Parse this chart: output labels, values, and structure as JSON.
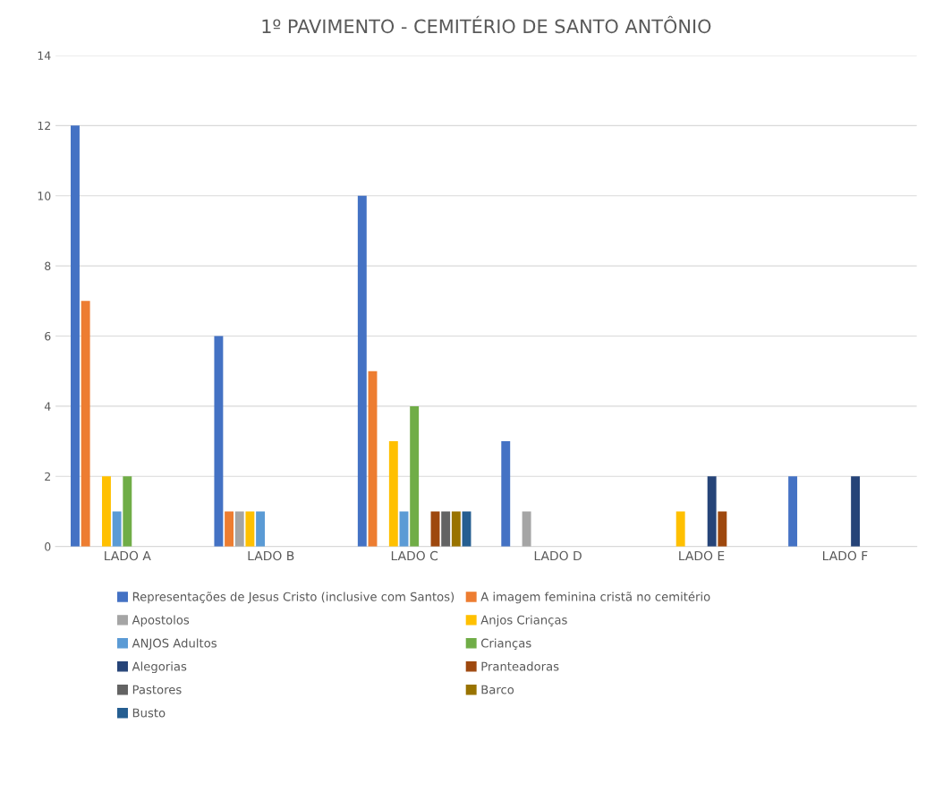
{
  "chart_data": {
    "type": "bar",
    "title": "1º PAVIMENTO - CEMITÉRIO DE SANTO ANTÔNIO",
    "categories": [
      "LADO A",
      "LADO B",
      "LADO C",
      "LADO D",
      "LADO E",
      "LADO F"
    ],
    "series": [
      {
        "name": "Representações de Jesus Cristo (inclusive com Santos)",
        "color": "#4472c4",
        "values": [
          12,
          6,
          10,
          3,
          null,
          2
        ]
      },
      {
        "name": "A imagem feminina cristã no cemitério",
        "color": "#ed7d31",
        "values": [
          7,
          1,
          5,
          null,
          null,
          null
        ]
      },
      {
        "name": "Apostolos",
        "color": "#a5a5a5",
        "values": [
          null,
          1,
          null,
          1,
          null,
          null
        ]
      },
      {
        "name": "Anjos Crianças",
        "color": "#ffc000",
        "values": [
          2,
          1,
          3,
          null,
          1,
          null
        ]
      },
      {
        "name": "ANJOS Adultos",
        "color": "#5b9bd5",
        "values": [
          1,
          1,
          1,
          null,
          null,
          null
        ]
      },
      {
        "name": "Crianças",
        "color": "#70ad47",
        "values": [
          2,
          null,
          4,
          null,
          null,
          null
        ]
      },
      {
        "name": "Alegorias",
        "color": "#264478",
        "values": [
          null,
          null,
          null,
          null,
          2,
          2
        ]
      },
      {
        "name": "Pranteadoras",
        "color": "#9e480e",
        "values": [
          null,
          null,
          1,
          null,
          1,
          null
        ]
      },
      {
        "name": "Pastores",
        "color": "#636363",
        "values": [
          null,
          null,
          1,
          null,
          null,
          null
        ]
      },
      {
        "name": "Barco",
        "color": "#997300",
        "values": [
          null,
          null,
          1,
          null,
          null,
          null
        ]
      },
      {
        "name": "Busto",
        "color": "#255e91",
        "values": [
          null,
          null,
          1,
          null,
          null,
          null
        ]
      }
    ],
    "ylim": [
      0,
      14
    ],
    "yticks": [
      0,
      2,
      4,
      6,
      8,
      10,
      12,
      14
    ],
    "grid": "y",
    "legend": "bottom"
  }
}
